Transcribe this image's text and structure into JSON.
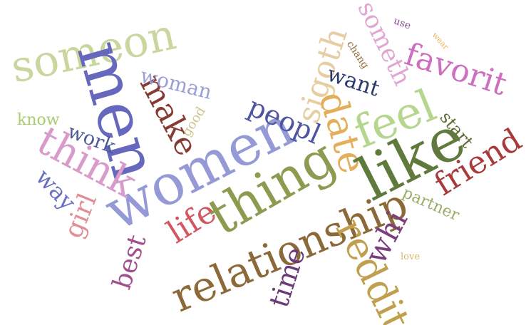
{
  "words": [
    {
      "text": "someon",
      "color": "#c9d79e"
    },
    {
      "text": "men",
      "color": "#6668bd"
    },
    {
      "text": "women",
      "color": "#9599d6"
    },
    {
      "text": "make",
      "color": "#853c34"
    },
    {
      "text": "woman",
      "color": "#9b9fd8"
    },
    {
      "text": "know",
      "color": "#a8cd6e"
    },
    {
      "text": "good",
      "color": "#cfc48d"
    },
    {
      "text": "work",
      "color": "#4b5a97"
    },
    {
      "text": "think",
      "color": "#d89bca"
    },
    {
      "text": "way",
      "color": "#6b6fc2"
    },
    {
      "text": "girl",
      "color": "#e08e97"
    },
    {
      "text": "best",
      "color": "#a24f8f"
    },
    {
      "text": "life",
      "color": "#d3555f"
    },
    {
      "text": "peopl",
      "color": "#4e55a0"
    },
    {
      "text": "thing",
      "color": "#8b9c50"
    },
    {
      "text": "sigoth",
      "color": "#e6cda2"
    },
    {
      "text": "someth",
      "color": "#e2a6d2"
    },
    {
      "text": "use",
      "color": "#8b4c94"
    },
    {
      "text": "wear",
      "color": "#e8b05e"
    },
    {
      "text": "chang",
      "color": "#8f6b38"
    },
    {
      "text": "want",
      "color": "#2b3a6b"
    },
    {
      "text": "date",
      "color": "#e5ae5a"
    },
    {
      "text": "feel",
      "color": "#b6d58f"
    },
    {
      "text": "favorit",
      "color": "#cd6fbe"
    },
    {
      "text": "start",
      "color": "#5d6d33"
    },
    {
      "text": "like",
      "color": "#5f7a3c"
    },
    {
      "text": "friend",
      "color": "#a93a3c"
    },
    {
      "text": "partner",
      "color": "#98ae67"
    },
    {
      "text": "relationship",
      "color": "#8b6938"
    },
    {
      "text": "whi",
      "color": "#7b3e7d"
    },
    {
      "text": "reddit",
      "color": "#c0a04e"
    },
    {
      "text": "time",
      "color": "#6b3a78"
    },
    {
      "text": "love",
      "color": "#d7b76a"
    }
  ]
}
